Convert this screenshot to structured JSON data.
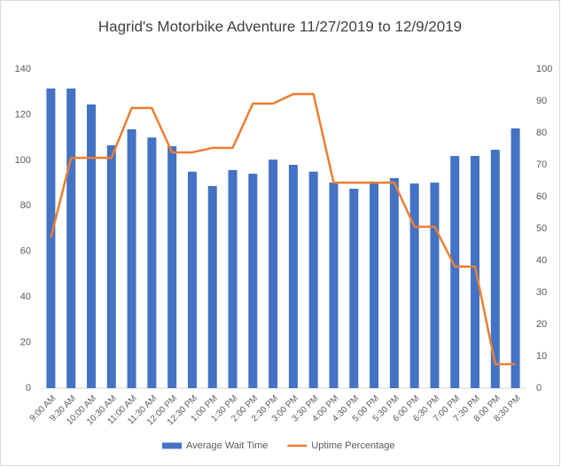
{
  "chart_data": {
    "type": "bar",
    "title": "Hagrid's Motorbike Adventure 11/27/2019 to 12/9/2019",
    "categories": [
      "9:00 AM",
      "9:30 AM",
      "10:00 AM",
      "10:30 AM",
      "11:00 AM",
      "11:30 AM",
      "12:00 PM",
      "12:30 PM",
      "1:00 PM",
      "1:30 PM",
      "2:00 PM",
      "2:30 PM",
      "3:00 PM",
      "3:30 PM",
      "4:00 PM",
      "4:30 PM",
      "5:00 PM",
      "5:30 PM",
      "6:00 PM",
      "6:30 PM",
      "7:00 PM",
      "7:30 PM",
      "8:00 PM",
      "8:30 PM"
    ],
    "series": [
      {
        "name": "Average Wait Time",
        "type": "bar",
        "color": "#4472c4",
        "values": [
          131.5,
          131.5,
          124.5,
          106.6,
          113.6,
          110,
          106.2,
          95,
          88.7,
          95.7,
          94.1,
          100.3,
          98,
          95,
          90.2,
          87.5,
          90.2,
          92.2,
          89.8,
          90.2,
          101.9,
          101.9,
          104.6,
          114
        ]
      },
      {
        "name": "Uptime Percentage",
        "type": "line",
        "axis": "y2",
        "color": "#ed7d31",
        "values": [
          47.2,
          72.2,
          72.2,
          72.2,
          87.8,
          87.8,
          73.9,
          73.9,
          75.3,
          75.3,
          89.2,
          89.2,
          92.2,
          92.2,
          64.4,
          64.4,
          64.4,
          64.4,
          50.6,
          50.6,
          38.1,
          38.1,
          7.5,
          7.5
        ]
      }
    ],
    "ylim": [
      0,
      140
    ],
    "yticks": [
      0,
      20,
      40,
      60,
      80,
      100,
      120,
      140
    ],
    "y2lim": [
      0,
      100
    ],
    "y2ticks": [
      0,
      10,
      20,
      30,
      40,
      50,
      60,
      70,
      80,
      90,
      100
    ],
    "legend": "bottom"
  }
}
